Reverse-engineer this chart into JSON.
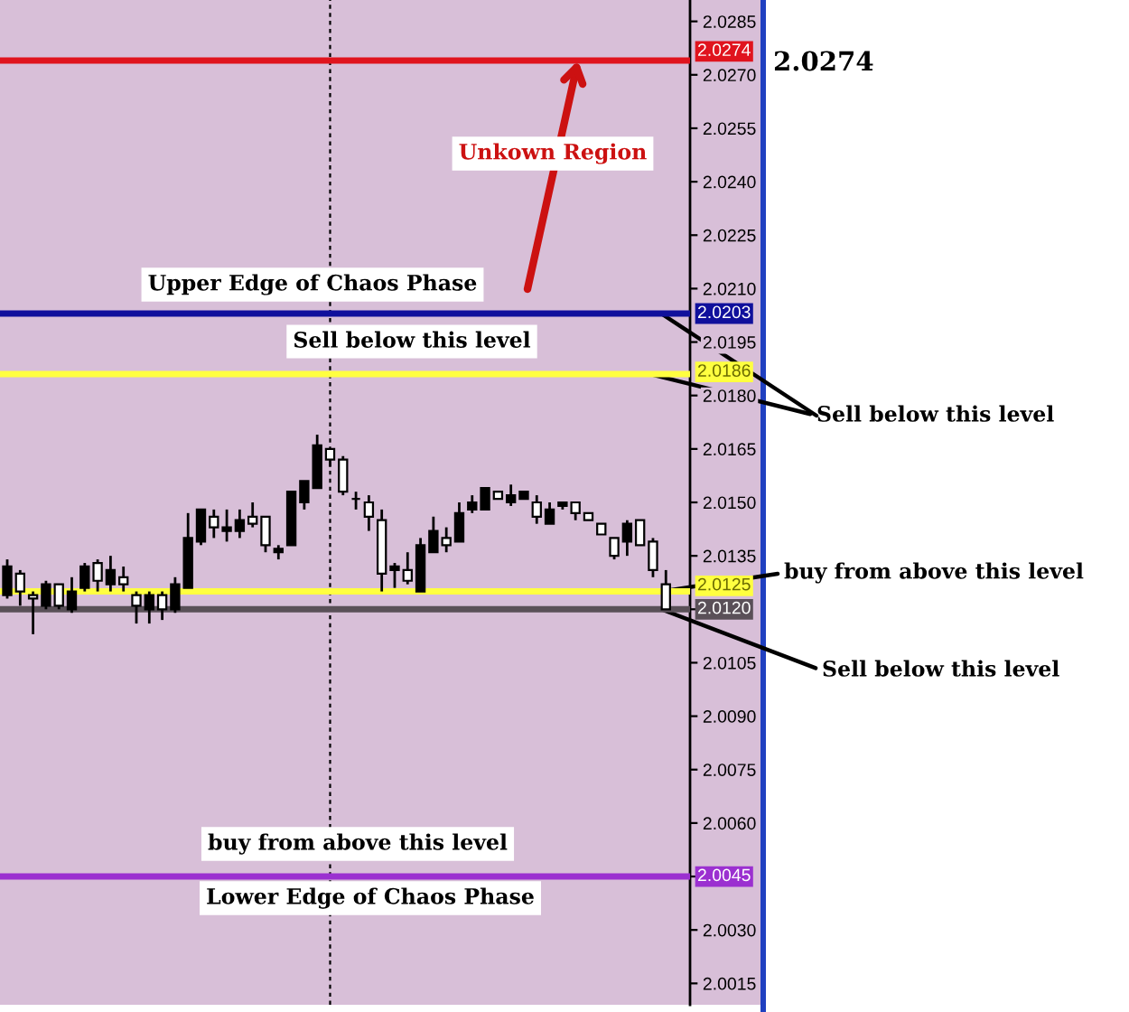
{
  "chart_data": {
    "type": "candlestick",
    "categories": [
      null,
      null,
      null,
      null,
      null,
      null,
      null,
      null,
      null,
      null,
      null,
      null,
      null,
      null,
      null,
      null,
      null,
      null,
      null,
      null,
      null,
      null,
      null,
      null,
      null,
      null,
      null,
      null,
      null,
      null,
      null,
      null,
      null,
      null,
      null,
      null,
      null,
      null,
      null,
      null,
      null,
      null,
      null,
      null,
      null,
      null,
      null,
      null,
      null,
      null,
      null,
      null
    ],
    "ohlc": [
      [
        2.0132,
        2.0134,
        2.0123,
        2.0124
      ],
      [
        2.0125,
        2.0131,
        2.0121,
        2.013
      ],
      [
        2.0123,
        2.0125,
        2.0113,
        2.0124
      ],
      [
        2.0127,
        2.0128,
        2.012,
        2.0121
      ],
      [
        2.0121,
        2.0127,
        2.012,
        2.0127
      ],
      [
        2.0125,
        2.0129,
        2.0119,
        2.012
      ],
      [
        2.0132,
        2.0133,
        2.0125,
        2.0126
      ],
      [
        2.0128,
        2.0134,
        2.0125,
        2.0133
      ],
      [
        2.0131,
        2.0135,
        2.0125,
        2.0127
      ],
      [
        2.0127,
        2.0132,
        2.0125,
        2.0129
      ],
      [
        2.0121,
        2.0125,
        2.0116,
        2.0124
      ],
      [
        2.0124,
        2.0125,
        2.0116,
        2.012
      ],
      [
        2.012,
        2.0125,
        2.0117,
        2.0124
      ],
      [
        2.0127,
        2.0129,
        2.0119,
        2.012
      ],
      [
        2.014,
        2.0147,
        2.0126,
        2.0126
      ],
      [
        2.0148,
        2.0148,
        2.0138,
        2.0139
      ],
      [
        2.0143,
        2.0148,
        2.014,
        2.0146
      ],
      [
        2.0143,
        2.0148,
        2.0139,
        2.0142
      ],
      [
        2.0145,
        2.0148,
        2.014,
        2.0142
      ],
      [
        2.0144,
        2.015,
        2.0143,
        2.0146
      ],
      [
        2.0138,
        2.0146,
        2.0136,
        2.0146
      ],
      [
        2.0137,
        2.0138,
        2.0134,
        2.0136
      ],
      [
        2.0153,
        2.0153,
        2.0138,
        2.0138
      ],
      [
        2.0156,
        2.0156,
        2.0148,
        2.015
      ],
      [
        2.0166,
        2.0169,
        2.0154,
        2.0154
      ],
      [
        2.0162,
        2.0165,
        2.016,
        2.0165
      ],
      [
        2.0153,
        2.0163,
        2.0152,
        2.0162
      ],
      [
        2.0151,
        2.0153,
        2.0148,
        2.0151
      ],
      [
        2.0146,
        2.0152,
        2.0142,
        2.015
      ],
      [
        2.013,
        2.0148,
        2.0125,
        2.0145
      ],
      [
        2.0132,
        2.0133,
        2.0126,
        2.0131
      ],
      [
        2.0128,
        2.0136,
        2.0127,
        2.0131
      ],
      [
        2.0138,
        2.014,
        2.0125,
        2.0125
      ],
      [
        2.0142,
        2.0146,
        2.0136,
        2.0136
      ],
      [
        2.0138,
        2.0143,
        2.0136,
        2.014
      ],
      [
        2.0147,
        2.015,
        2.0139,
        2.0139
      ],
      [
        2.015,
        2.0152,
        2.0147,
        2.0148
      ],
      [
        2.0154,
        2.0154,
        2.0148,
        2.0148
      ],
      [
        2.0151,
        2.0153,
        2.0151,
        2.0153
      ],
      [
        2.0152,
        2.0155,
        2.0149,
        2.015
      ],
      [
        2.0153,
        2.0153,
        2.0151,
        2.0151
      ],
      [
        2.0146,
        2.0152,
        2.0144,
        2.015
      ],
      [
        2.0148,
        2.015,
        2.0144,
        2.0144
      ],
      [
        2.015,
        2.015,
        2.0148,
        2.0149
      ],
      [
        2.0147,
        2.015,
        2.0145,
        2.015
      ],
      [
        2.0145,
        2.0147,
        2.0145,
        2.0147
      ],
      [
        2.0141,
        2.0144,
        2.0141,
        2.0144
      ],
      [
        2.0135,
        2.014,
        2.0134,
        2.014
      ],
      [
        2.0144,
        2.0145,
        2.0135,
        2.0139
      ],
      [
        2.0138,
        2.0145,
        2.0138,
        2.0145
      ],
      [
        2.0131,
        2.014,
        2.0129,
        2.0139
      ],
      [
        2.012,
        2.0131,
        2.012,
        2.0127
      ]
    ],
    "ylim": [
      2.0009,
      2.0291
    ],
    "yticks": [
      2.0285,
      {
        "value": 2.027,
        "label": "2.0270"
      },
      2.0255,
      {
        "value": 2.024,
        "label": "2.0240"
      },
      2.0225,
      {
        "value": 2.021,
        "label": "2.0210"
      },
      2.0195,
      {
        "value": 2.018,
        "label": "2.0180"
      },
      2.0165,
      {
        "value": 2.015,
        "label": "2.0150"
      },
      2.0135,
      {
        "value": 2.012,
        "label": null
      },
      2.0105,
      {
        "value": 2.009,
        "label": "2.0090"
      },
      2.0075,
      {
        "value": 2.006,
        "label": "2.0060"
      },
      {
        "value": 2.0045,
        "label": null
      },
      {
        "value": 2.003,
        "label": "2.0030"
      },
      2.0015
    ],
    "tick_labels": "y",
    "ref_lines": [
      {
        "axis": "y",
        "value": 2.0274,
        "label": "2.0274",
        "color": "#e0141e"
      },
      {
        "axis": "y",
        "value": 2.0203,
        "label": "2.0203",
        "color": "#10109c"
      },
      {
        "axis": "y",
        "value": 2.0186,
        "label": "2.0186",
        "color": "#ffff40"
      },
      {
        "axis": "y",
        "value": 2.0125,
        "label": "2.0125",
        "color": "#ffff40"
      },
      {
        "axis": "y",
        "value": 2.012,
        "label": "2.0120",
        "color": "#5a5058"
      },
      {
        "axis": "y",
        "value": 2.0045,
        "label": "2.0045",
        "color": "#9b30d0"
      }
    ],
    "annotations": [
      {
        "text": "Upper Edge of Chaos Phase",
        "y": 2.0203
      },
      {
        "text": "Sell below this level",
        "y": 2.0186
      },
      "Unkown Region",
      "Sell below this level",
      "buy from above this level",
      "Sell below this level",
      {
        "text": "buy from above this level",
        "y": 2.0045
      },
      {
        "text": "Lower Edge of Chaos Phase",
        "y": 2.0045
      },
      "2.0274"
    ]
  }
}
